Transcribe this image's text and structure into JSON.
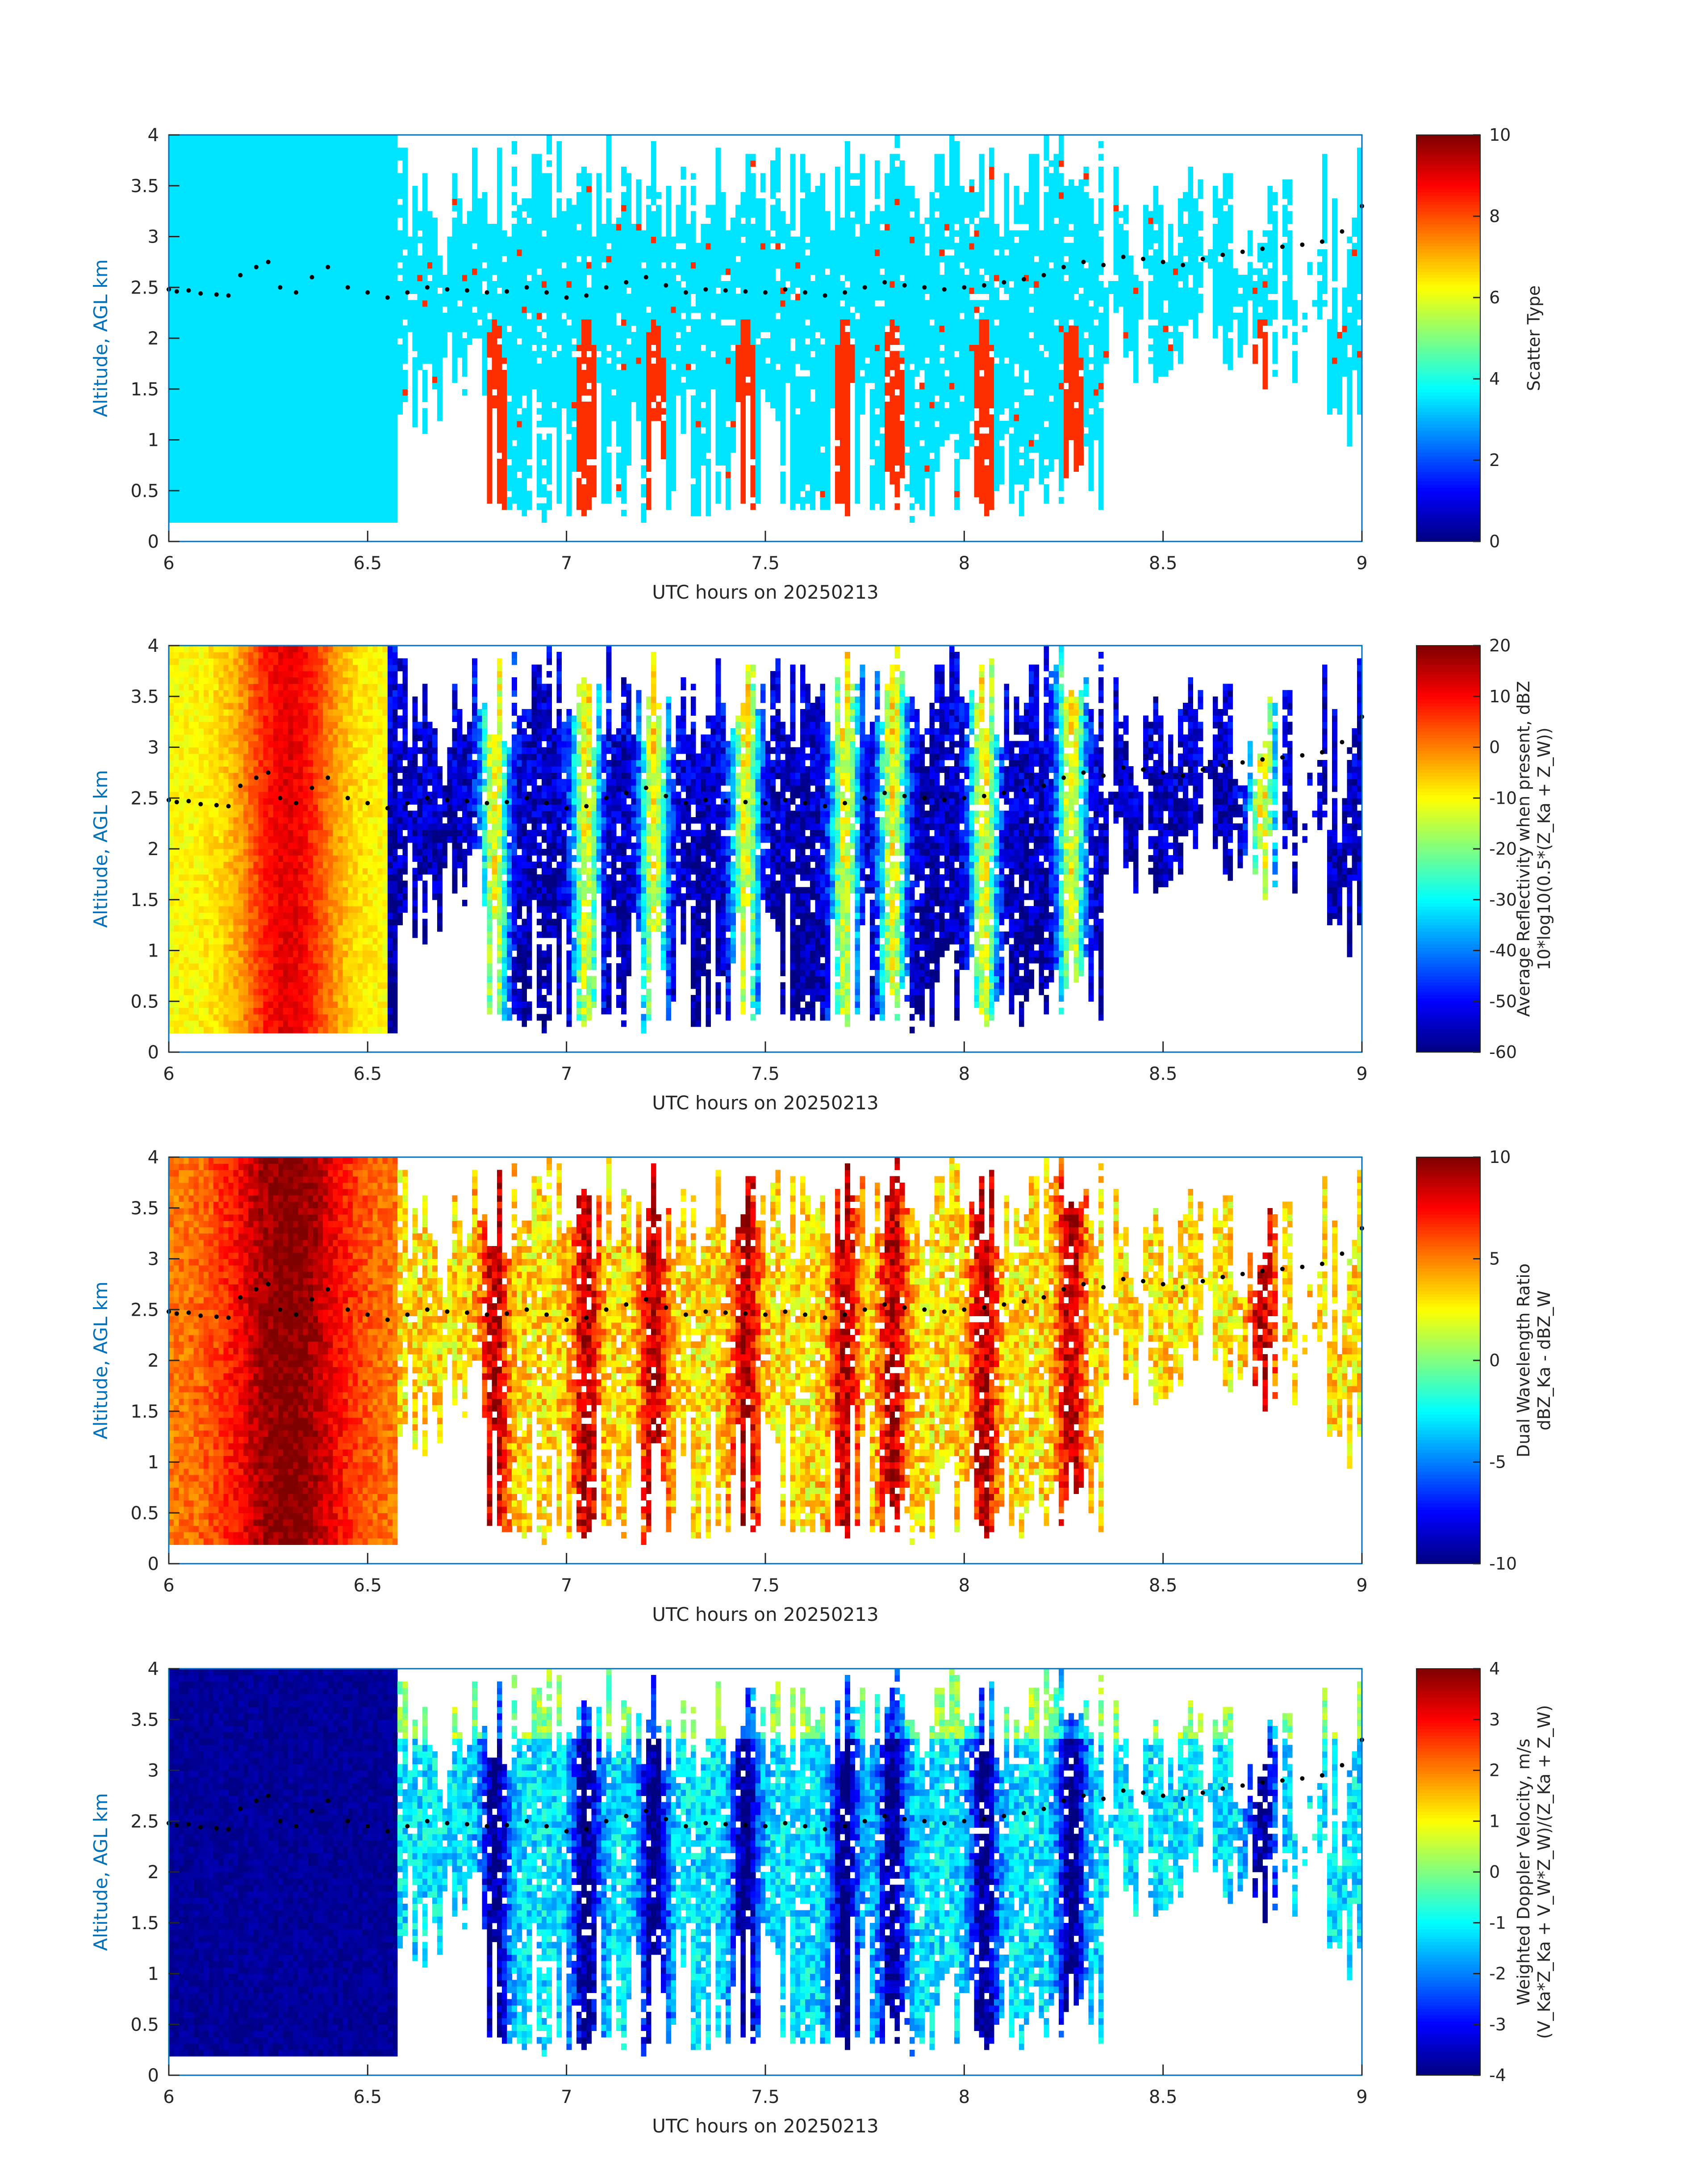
{
  "figure": {
    "background": "#ffffff",
    "axis_color": "#0072BD",
    "text_color": "#262626",
    "marker_color": "#000000"
  },
  "chart_data": [
    {
      "type": "heatmap",
      "xlabel": "UTC hours on 20250213",
      "ylabel": "Altitude, AGL km",
      "xlim": [
        6,
        9
      ],
      "ylim": [
        0,
        4
      ],
      "xticks": [
        "6",
        "6.5",
        "7",
        "7.5",
        "8",
        "8.5",
        "9"
      ],
      "yticks": [
        "0",
        "0.5",
        "1",
        "1.5",
        "2",
        "2.5",
        "3",
        "3.5",
        "4"
      ],
      "colorbar": {
        "label_lines": [
          "Scatter Type"
        ],
        "min": 0,
        "max": 10,
        "ticks": [
          "0",
          "2",
          "4",
          "6",
          "8",
          "10"
        ]
      },
      "colormap": "jet",
      "field": "scatter"
    },
    {
      "type": "heatmap",
      "xlabel": "UTC hours on 20250213",
      "ylabel": "Altitude, AGL km",
      "xlim": [
        6,
        9
      ],
      "ylim": [
        0,
        4
      ],
      "xticks": [
        "6",
        "6.5",
        "7",
        "7.5",
        "8",
        "8.5",
        "9"
      ],
      "yticks": [
        "0",
        "0.5",
        "1",
        "1.5",
        "2",
        "2.5",
        "3",
        "3.5",
        "4"
      ],
      "colorbar": {
        "label_lines": [
          "Average Reflectivity when present, dBZ",
          "10*log10(0.5*(Z_Ka + Z_W))"
        ],
        "min": -60,
        "max": 20,
        "ticks": [
          "-60",
          "-50",
          "-40",
          "-30",
          "-20",
          "-10",
          "0",
          "10",
          "20"
        ]
      },
      "colormap": "jet",
      "field": "reflectivity"
    },
    {
      "type": "heatmap",
      "xlabel": "UTC hours on 20250213",
      "ylabel": "Altitude, AGL km",
      "xlim": [
        6,
        9
      ],
      "ylim": [
        0,
        4
      ],
      "xticks": [
        "6",
        "6.5",
        "7",
        "7.5",
        "8",
        "8.5",
        "9"
      ],
      "yticks": [
        "0",
        "0.5",
        "1",
        "1.5",
        "2",
        "2.5",
        "3",
        "3.5",
        "4"
      ],
      "colorbar": {
        "label_lines": [
          "Dual Wavelength Ratio",
          "dBZ_Ka - dBZ_W"
        ],
        "min": -10,
        "max": 10,
        "ticks": [
          "-10",
          "-5",
          "0",
          "5",
          "10"
        ]
      },
      "colormap": "jet",
      "field": "dwr"
    },
    {
      "type": "heatmap",
      "xlabel": "UTC hours on 20250213",
      "ylabel": "Altitude, AGL km",
      "xlim": [
        6,
        9
      ],
      "ylim": [
        0,
        4
      ],
      "xticks": [
        "6",
        "6.5",
        "7",
        "7.5",
        "8",
        "8.5",
        "9"
      ],
      "yticks": [
        "0",
        "0.5",
        "1",
        "1.5",
        "2",
        "2.5",
        "3",
        "3.5",
        "4"
      ],
      "colorbar": {
        "label_lines": [
          "Weighted Doppler Velocity, m/s",
          "(V_Ka*Z_Ka + V_W*Z_W)/(Z_Ka + Z_W)"
        ],
        "min": -4,
        "max": 4,
        "ticks": [
          "-4",
          "-3",
          "-2",
          "-1",
          "0",
          "1",
          "2",
          "3",
          "4"
        ]
      },
      "colormap": "jet",
      "field": "velocity"
    }
  ],
  "cloud_base_markers": {
    "x": [
      6.0,
      6.02,
      6.05,
      6.08,
      6.12,
      6.15,
      6.18,
      6.22,
      6.25,
      6.28,
      6.32,
      6.36,
      6.4,
      6.45,
      6.5,
      6.55,
      6.6,
      6.65,
      6.7,
      6.75,
      6.8,
      6.85,
      6.9,
      6.95,
      7.0,
      7.05,
      7.1,
      7.15,
      7.2,
      7.25,
      7.3,
      7.35,
      7.4,
      7.45,
      7.5,
      7.55,
      7.6,
      7.65,
      7.7,
      7.75,
      7.8,
      7.85,
      7.9,
      7.95,
      8.0,
      8.05,
      8.1,
      8.15,
      8.2,
      8.25,
      8.3,
      8.35,
      8.4,
      8.45,
      8.5,
      8.55,
      8.6,
      8.65,
      8.7,
      8.75,
      8.8,
      8.85,
      8.9,
      8.95,
      9.0
    ],
    "y": [
      2.48,
      2.46,
      2.47,
      2.44,
      2.43,
      2.42,
      2.62,
      2.7,
      2.75,
      2.5,
      2.45,
      2.6,
      2.7,
      2.5,
      2.45,
      2.4,
      2.45,
      2.5,
      2.48,
      2.47,
      2.45,
      2.46,
      2.5,
      2.45,
      2.4,
      2.42,
      2.5,
      2.55,
      2.6,
      2.52,
      2.45,
      2.48,
      2.47,
      2.46,
      2.45,
      2.48,
      2.45,
      2.42,
      2.45,
      2.5,
      2.55,
      2.52,
      2.5,
      2.48,
      2.5,
      2.52,
      2.55,
      2.58,
      2.62,
      2.7,
      2.75,
      2.72,
      2.8,
      2.78,
      2.75,
      2.72,
      2.78,
      2.82,
      2.85,
      2.88,
      2.9,
      2.92,
      2.95,
      3.05,
      3.3
    ]
  }
}
